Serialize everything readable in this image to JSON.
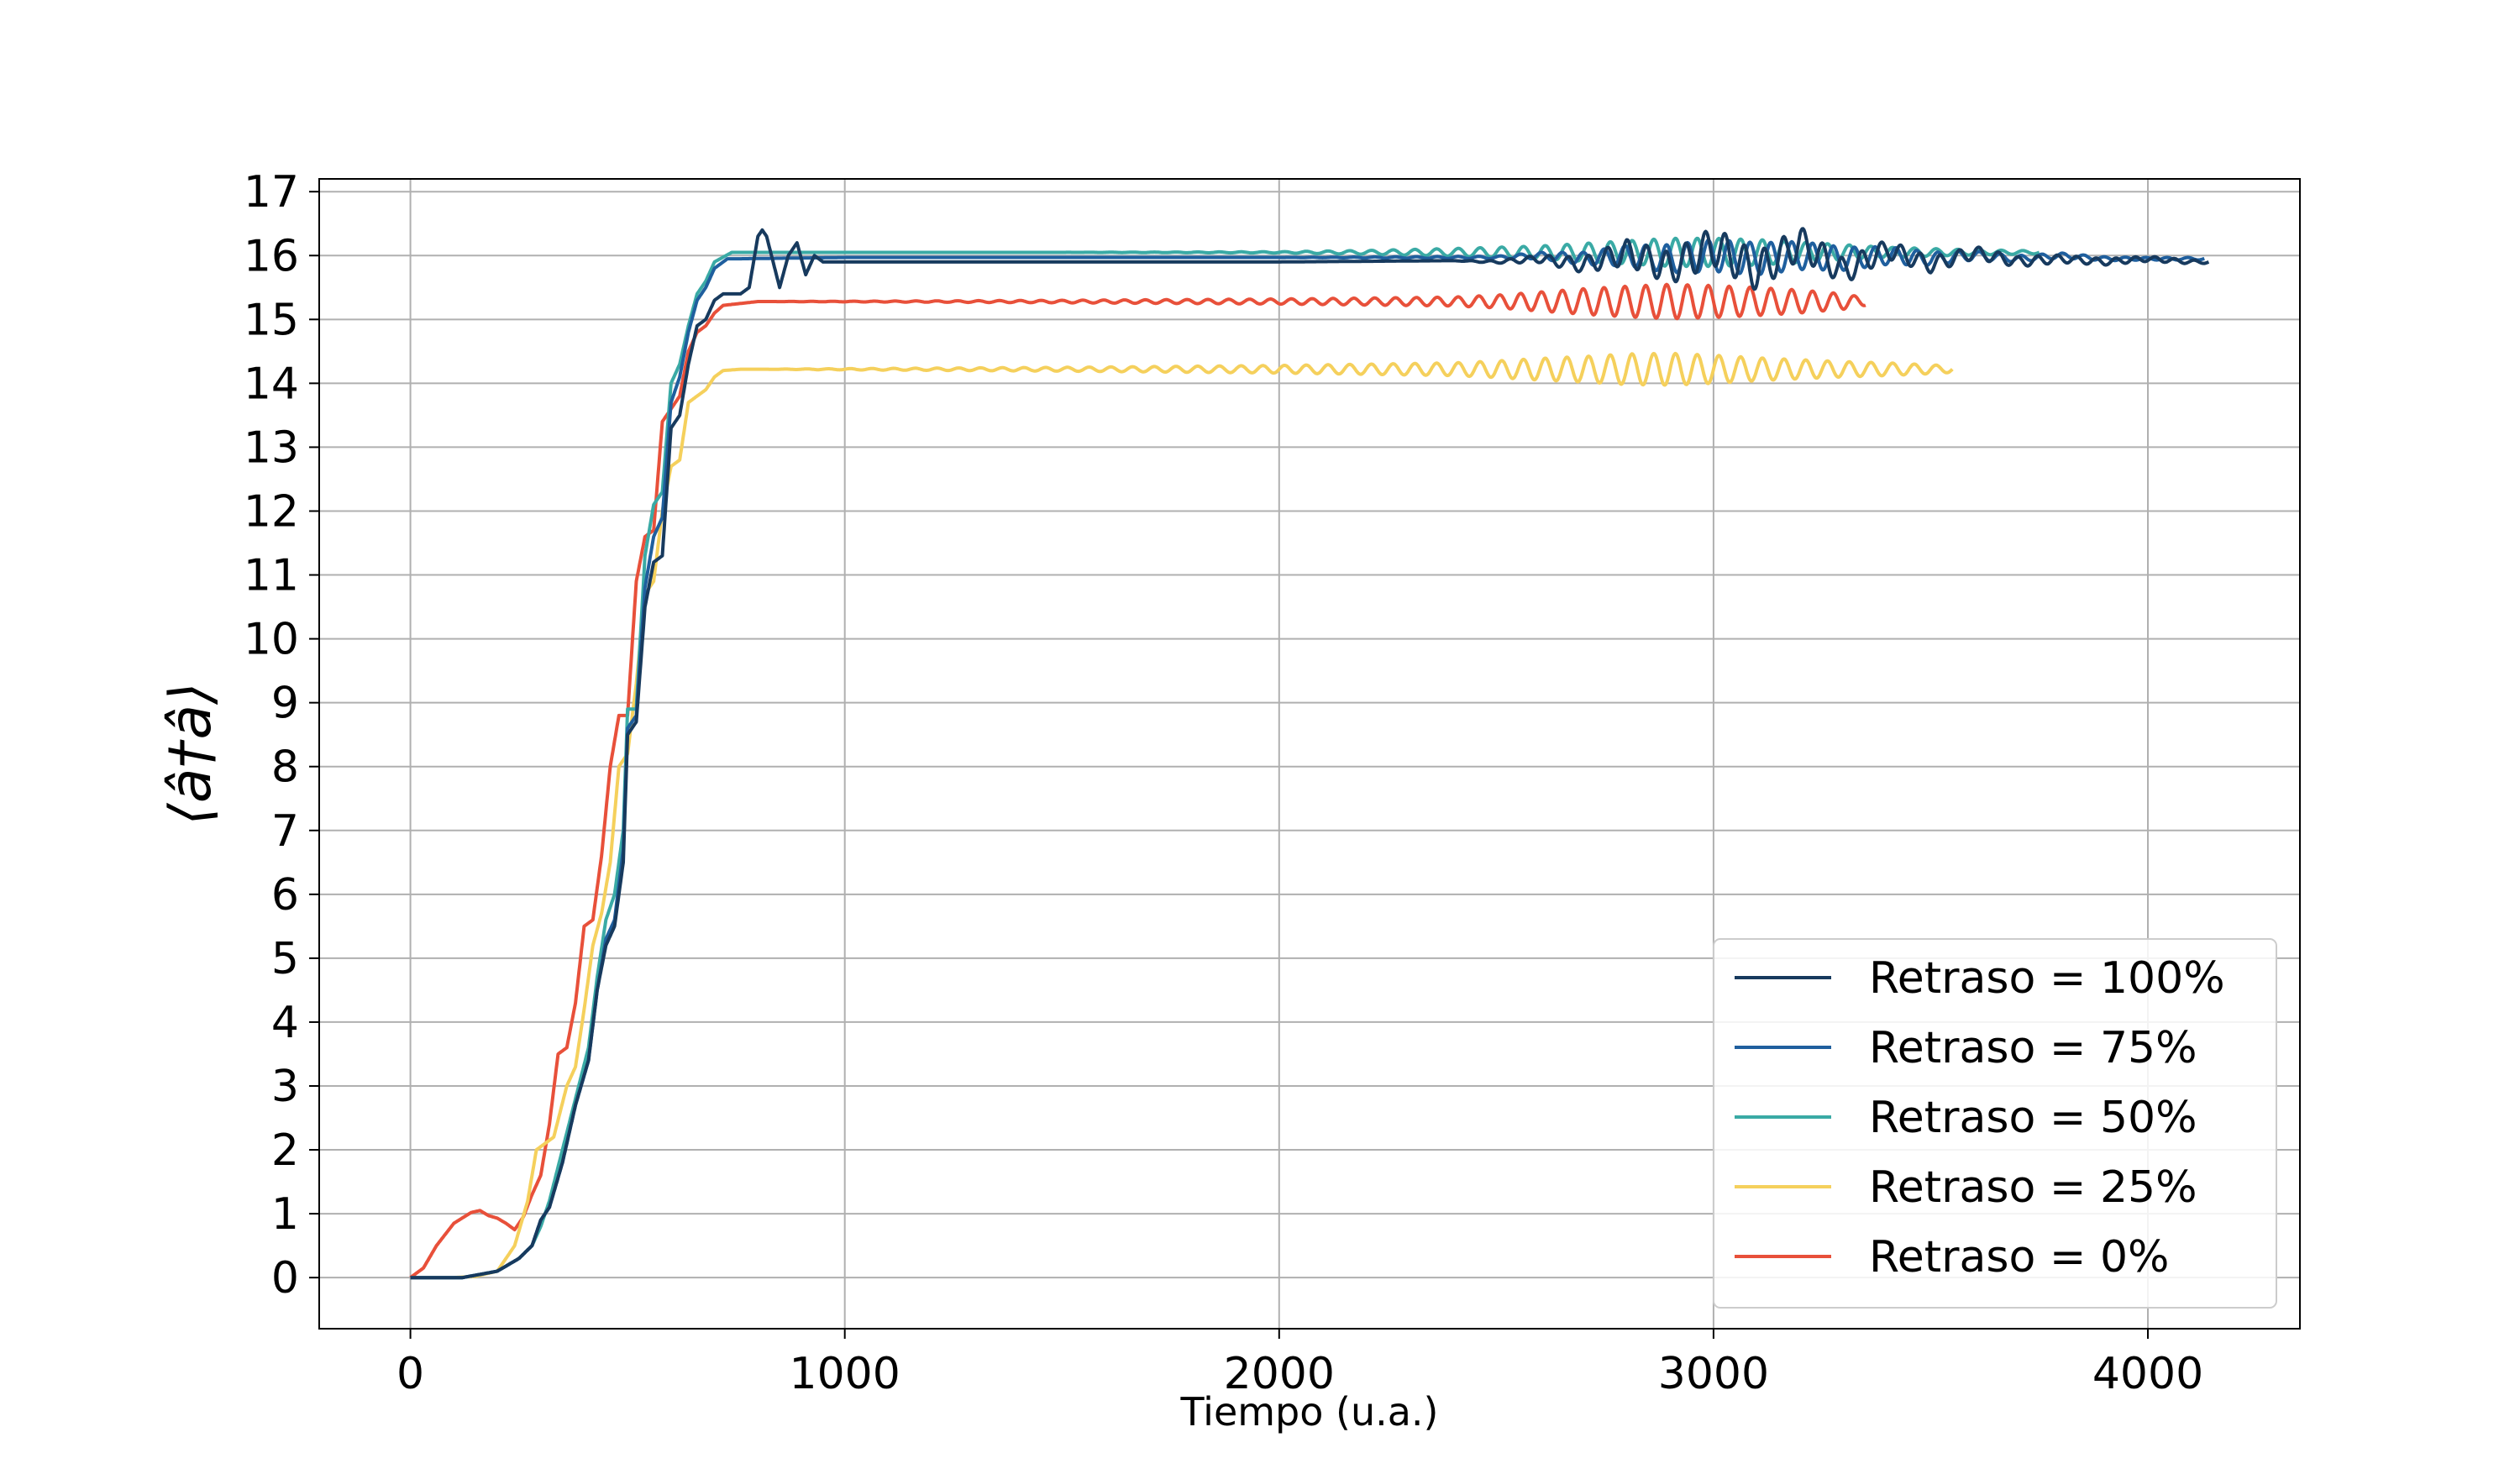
{
  "chart_data": {
    "type": "line",
    "title": "",
    "xlabel": "Tiempo (u.a.)",
    "ylabel": "⟨â†â⟩",
    "xlim": [
      -210,
      4350
    ],
    "ylim": [
      -0.8,
      17.2
    ],
    "xticks": [
      0,
      1000,
      2000,
      3000,
      4000
    ],
    "yticks": [
      0,
      1,
      2,
      3,
      4,
      5,
      6,
      7,
      8,
      9,
      10,
      11,
      12,
      13,
      14,
      15,
      16,
      17
    ],
    "grid": true,
    "legend_position": "lower-right",
    "series": [
      {
        "name": "Retraso = 100%",
        "color": "#173a5e",
        "x": [
          0,
          120,
          200,
          250,
          280,
          300,
          320,
          350,
          380,
          410,
          430,
          450,
          470,
          490,
          500,
          520,
          540,
          560,
          580,
          600,
          620,
          640,
          660,
          680,
          700,
          720,
          740,
          760,
          780,
          800,
          810,
          820,
          835,
          850,
          870,
          890,
          910,
          930,
          950,
          980,
          1000,
          1100,
          1500,
          2000,
          2400,
          2500,
          2600,
          2700,
          2800,
          2900,
          3000,
          3100,
          3200,
          3300,
          3400,
          3500,
          3600,
          3700,
          3800,
          3900,
          4000,
          4100,
          4140
        ],
        "y": [
          0,
          0,
          0.1,
          0.3,
          0.5,
          0.9,
          1.1,
          1.8,
          2.7,
          3.4,
          4.5,
          5.2,
          5.5,
          6.5,
          8.5,
          8.7,
          10.5,
          11.2,
          11.3,
          13.3,
          13.5,
          14.3,
          14.9,
          15.0,
          15.3,
          15.4,
          15.4,
          15.4,
          15.5,
          16.3,
          16.4,
          16.3,
          15.9,
          15.5,
          16.0,
          16.2,
          15.7,
          16.0,
          15.9,
          15.9,
          15.9,
          15.9,
          15.9,
          15.9,
          15.92,
          15.9,
          15.95,
          15.85,
          16.05,
          15.8,
          16.15,
          15.75,
          16.2,
          15.75,
          16.1,
          15.85,
          16.05,
          15.9,
          15.95,
          15.9,
          15.95,
          15.9,
          15.9
        ],
        "amp": [
          0,
          0,
          0,
          0,
          0,
          0,
          0,
          0,
          0,
          0,
          0,
          0,
          0,
          0,
          0,
          0,
          0,
          0,
          0,
          0,
          0,
          0,
          0,
          0,
          0,
          0,
          0,
          0,
          0,
          0,
          0,
          0,
          0,
          0,
          0,
          0,
          0,
          0,
          0,
          0,
          0,
          0,
          0,
          0,
          0,
          0.02,
          0.06,
          0.12,
          0.2,
          0.25,
          0.3,
          0.3,
          0.25,
          0.2,
          0.15,
          0.12,
          0.1,
          0.08,
          0.06,
          0.05,
          0.04,
          0.03,
          0.02
        ],
        "osc_period": 45
      },
      {
        "name": "Retraso = 75%",
        "color": "#1f5f9e",
        "x": [
          0,
          120,
          200,
          250,
          280,
          300,
          320,
          350,
          380,
          410,
          430,
          450,
          470,
          490,
          500,
          520,
          540,
          560,
          580,
          600,
          620,
          640,
          660,
          680,
          700,
          730,
          760,
          1000,
          1500,
          2000,
          2500,
          2600,
          2700,
          2800,
          2900,
          3000,
          3100,
          3200,
          3300,
          3400,
          3500,
          3600,
          3700,
          3800,
          3900,
          4000,
          4130
        ],
        "y": [
          0,
          0,
          0.1,
          0.3,
          0.5,
          0.9,
          1.1,
          1.8,
          2.7,
          3.4,
          4.5,
          5.3,
          5.6,
          6.7,
          8.6,
          8.8,
          10.8,
          11.6,
          11.9,
          13.7,
          14.1,
          14.8,
          15.3,
          15.5,
          15.8,
          15.95,
          15.95,
          15.97,
          15.97,
          15.97,
          15.97,
          16.0,
          15.95,
          16.0,
          15.95,
          16.0,
          15.95,
          16.0,
          15.95,
          16.0,
          15.95,
          16.0,
          15.95,
          16.0,
          15.95,
          15.95,
          15.95
        ],
        "amp": [
          0,
          0,
          0,
          0,
          0,
          0,
          0,
          0,
          0,
          0,
          0,
          0,
          0,
          0,
          0,
          0,
          0,
          0,
          0,
          0,
          0,
          0,
          0,
          0,
          0,
          0,
          0,
          0,
          0,
          0,
          0.02,
          0.05,
          0.1,
          0.16,
          0.22,
          0.25,
          0.25,
          0.22,
          0.18,
          0.14,
          0.1,
          0.07,
          0.05,
          0.04,
          0.03,
          0.02,
          0.02
        ],
        "osc_period": 48
      },
      {
        "name": "Retraso = 50%",
        "color": "#3aaaa5",
        "x": [
          0,
          120,
          200,
          250,
          280,
          300,
          320,
          350,
          380,
          410,
          430,
          450,
          470,
          490,
          500,
          520,
          540,
          560,
          580,
          600,
          620,
          640,
          660,
          680,
          700,
          740,
          800,
          1000,
          1500,
          2000,
          2200,
          2400,
          2500,
          2600,
          2700,
          2800,
          2900,
          3000,
          3100,
          3200,
          3300,
          3400,
          3500,
          3600,
          3700,
          3750
        ],
        "y": [
          0,
          0,
          0.1,
          0.3,
          0.5,
          0.8,
          1.2,
          2.0,
          2.8,
          3.6,
          4.7,
          5.6,
          6.0,
          7.0,
          8.9,
          8.9,
          11.3,
          12.1,
          12.3,
          14.0,
          14.3,
          14.9,
          15.4,
          15.6,
          15.9,
          16.05,
          16.05,
          16.05,
          16.05,
          16.05,
          16.05,
          16.05,
          16.05,
          16.05,
          16.05,
          16.05,
          16.05,
          16.05,
          16.05,
          16.05,
          16.05,
          16.05,
          16.05,
          16.05,
          16.05,
          16.05
        ],
        "amp": [
          0,
          0,
          0,
          0,
          0,
          0,
          0,
          0,
          0,
          0,
          0,
          0,
          0,
          0,
          0,
          0,
          0,
          0,
          0,
          0,
          0,
          0,
          0,
          0,
          0,
          0,
          0,
          0,
          0,
          0.01,
          0.03,
          0.06,
          0.08,
          0.1,
          0.14,
          0.18,
          0.22,
          0.22,
          0.2,
          0.16,
          0.12,
          0.08,
          0.06,
          0.04,
          0.03,
          0.02
        ],
        "osc_period": 50
      },
      {
        "name": "Retraso = 25%",
        "color": "#f5d05c",
        "x": [
          0,
          100,
          150,
          200,
          240,
          270,
          290,
          310,
          330,
          360,
          380,
          400,
          420,
          440,
          460,
          480,
          500,
          520,
          540,
          560,
          580,
          600,
          620,
          640,
          660,
          680,
          700,
          720,
          760,
          800,
          1000,
          1500,
          2000,
          2400,
          2500,
          2600,
          2700,
          2800,
          2900,
          3000,
          3100,
          3200,
          3300,
          3400,
          3500,
          3550
        ],
        "y": [
          0,
          0,
          0.02,
          0.1,
          0.5,
          1.2,
          2.0,
          2.1,
          2.2,
          3.0,
          3.3,
          4.2,
          5.2,
          5.7,
          6.5,
          8.0,
          8.2,
          9.3,
          10.7,
          10.9,
          12.0,
          12.7,
          12.8,
          13.7,
          13.8,
          13.9,
          14.1,
          14.2,
          14.22,
          14.22,
          14.22,
          14.22,
          14.22,
          14.22,
          14.22,
          14.22,
          14.22,
          14.22,
          14.22,
          14.22,
          14.22,
          14.22,
          14.22,
          14.22,
          14.22,
          14.22
        ],
        "amp": [
          0,
          0,
          0,
          0,
          0,
          0,
          0,
          0,
          0,
          0,
          0,
          0,
          0,
          0,
          0,
          0,
          0,
          0,
          0,
          0,
          0,
          0,
          0,
          0,
          0,
          0,
          0,
          0,
          0,
          0,
          0.01,
          0.03,
          0.06,
          0.1,
          0.13,
          0.17,
          0.2,
          0.24,
          0.25,
          0.22,
          0.18,
          0.15,
          0.12,
          0.1,
          0.07,
          0.05
        ],
        "osc_period": 50
      },
      {
        "name": "Retraso = 0%",
        "color": "#e8503a",
        "x": [
          0,
          30,
          60,
          100,
          140,
          160,
          180,
          200,
          220,
          240,
          260,
          280,
          300,
          320,
          340,
          360,
          380,
          400,
          420,
          440,
          460,
          480,
          500,
          520,
          540,
          560,
          580,
          600,
          620,
          640,
          660,
          680,
          700,
          720,
          760,
          800,
          1000,
          1500,
          2000,
          2400,
          2500,
          2600,
          2700,
          2800,
          2900,
          3000,
          3100,
          3200,
          3300,
          3350
        ],
        "y": [
          0,
          0.15,
          0.5,
          0.85,
          1.02,
          1.05,
          0.97,
          0.93,
          0.85,
          0.75,
          0.95,
          1.3,
          1.6,
          2.4,
          3.5,
          3.6,
          4.3,
          5.5,
          5.6,
          6.6,
          8.0,
          8.8,
          8.8,
          10.9,
          11.6,
          11.7,
          13.4,
          13.6,
          13.8,
          14.5,
          14.8,
          14.9,
          15.1,
          15.22,
          15.25,
          15.28,
          15.28,
          15.28,
          15.28,
          15.28,
          15.28,
          15.28,
          15.28,
          15.28,
          15.28,
          15.28,
          15.28,
          15.28,
          15.28,
          15.28
        ],
        "amp": [
          0,
          0,
          0,
          0,
          0,
          0,
          0,
          0,
          0,
          0,
          0,
          0,
          0,
          0,
          0,
          0,
          0,
          0,
          0,
          0,
          0,
          0,
          0,
          0,
          0,
          0,
          0,
          0,
          0,
          0,
          0,
          0,
          0,
          0,
          0,
          0,
          0.005,
          0.02,
          0.04,
          0.07,
          0.1,
          0.15,
          0.2,
          0.24,
          0.27,
          0.25,
          0.22,
          0.18,
          0.12,
          0.06
        ],
        "osc_period": 48
      }
    ]
  }
}
